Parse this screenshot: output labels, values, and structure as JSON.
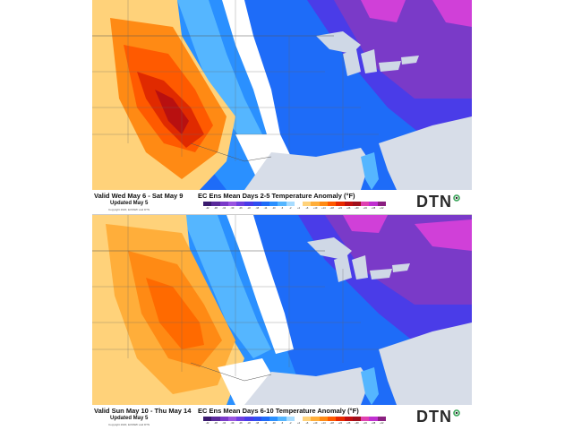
{
  "panels": [
    {
      "valid": "Valid Wed May 6 - Sat May 9",
      "updated": "Updated May 5",
      "copyright": "Copyright 2020, ECMWF and DTN",
      "title": "EC Ens Mean Days 2-5 Temperature Anomaly (°F)"
    },
    {
      "valid": "Valid Sun May 10 - Thu May 14",
      "updated": "Updated May 5",
      "copyright": "Copyright 2020, ECMWF and DTN",
      "title": "EC Ens Mean Days 6-10 Temperature Anomaly (°F)"
    }
  ],
  "logo": "DTN",
  "legend": {
    "labels": [
      "-42",
      "-38",
      "-34",
      "-30",
      "-26",
      "-22",
      "-18",
      "-14",
      "-10",
      "-6",
      "-2",
      "+2",
      "+6",
      "+10",
      "+14",
      "+18",
      "+22",
      "+26",
      "+30",
      "+34",
      "+38",
      "+42"
    ],
    "colors": [
      "#3a1a6e",
      "#5a2a9a",
      "#7a3ac8",
      "#9a55e0",
      "#7040e0",
      "#4a3ce8",
      "#2f4ff0",
      "#1e6cf8",
      "#2a90ff",
      "#55b6ff",
      "#a8dcff",
      "#ffffff",
      "#ffd27a",
      "#ffae3a",
      "#ff8a14",
      "#ff5a00",
      "#e82a00",
      "#c01010",
      "#a0101c",
      "#e040b0",
      "#c030d0",
      "#8a2080"
    ]
  },
  "colors": {
    "land_neutral": "#ffffff",
    "cool_light": "#55b6ff",
    "cool": "#1e6cf8",
    "cold": "#4a3ce8",
    "very_cold": "#7a3ac8",
    "extreme_cold": "#d040d8",
    "warm_light": "#ffae3a",
    "warm": "#ff6a00",
    "hot": "#e02a00",
    "very_hot": "#b81010",
    "lakes": "#cfd8e6",
    "ocean": "#d7dde8"
  }
}
